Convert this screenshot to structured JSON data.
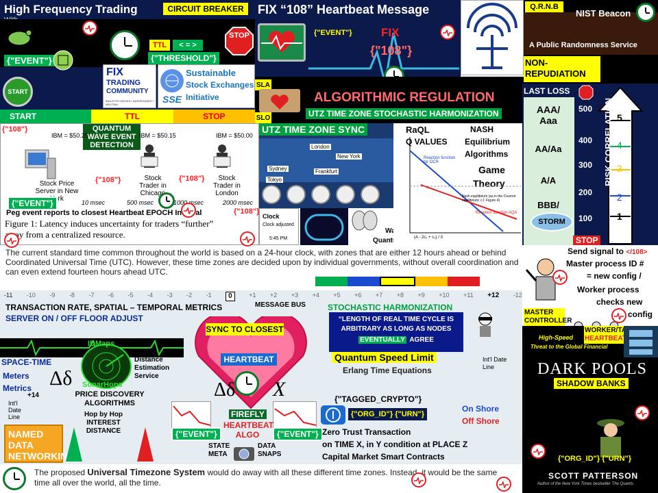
{
  "hft": {
    "title": "High Frequency Trading",
    "subtitle": "With",
    "breaker": "CIRCUIT BREAKER",
    "event": "{\"EVENT\"}",
    "threshold": "{\"THRESHOLD\"}",
    "ttl": "TTL",
    "arrows": "< = >",
    "stop": "STOP",
    "start_btn": "START"
  },
  "fix": {
    "title": "FIX “108” Heartbeat Message",
    "event": "{\"EVENT\"}",
    "fix": "FIX",
    "num": "{\"108\"}",
    "logo_line1": "FIX",
    "logo_line2": "TRADING",
    "logo_line3": "COMMUNITY",
    "logo_tag": "INDUSTRY-DRIVEN • INDEPENDENT • NEUTRAL"
  },
  "sse": {
    "line1": "Sustainable",
    "line2": "Stock Exchanges",
    "line3": "Initiative",
    "abbr": "SSE"
  },
  "nist": {
    "qrnb": "Q.R.N.B",
    "title": "NIST Beacon",
    "subtitle": "A Public Randomness Service",
    "nonrep": "NON-REPUDIATION"
  },
  "reg": {
    "sla": "SLA",
    "slo": "SLO",
    "title": "ALGORITHMIC REGULATION",
    "utz": "UTZ TIME ZONE STOCHASTIC HARMONIZATION"
  },
  "bar": {
    "start": "START",
    "ttl": "TTL",
    "stop": "STOP"
  },
  "latency": {
    "n108": "{\"108\"}",
    "quantum": "QUANTUM WAVE EVENT DETECTION",
    "ibm1": "IBM = $50.25",
    "ibm2": "IBM = $50.15",
    "ibm3": "IBM = $50.00",
    "server": "Stock Price Server in New York",
    "chicago": "Stock Trader in Chicago",
    "london": "Stock Trader in London",
    "t1": "10 msec",
    "t2": "500 msec",
    "t3": "1000 msec",
    "t4": "2000 msec",
    "event": "{\"EVENT\"}",
    "peg": "Peg event reports to closest  Heartbeat EPOCH Interval",
    "fig": "Figure 1: Latency induces uncertainty for traders “further” away from a centralized resource."
  },
  "sync": {
    "title": "UTZ TIME ZONE SYNC",
    "cities": [
      "London",
      "New York",
      "Sydney",
      "Frankfurt",
      "Tokyo"
    ],
    "clock": "Clock",
    "clock_adj": "Clock adjusted",
    "time": "5:45 PM"
  },
  "game": {
    "raql": "RaQL",
    "qvalues": "Q VALUES",
    "nash": "NASH",
    "equi": "Equilibrium",
    "algos": "Algorithms",
    "game": "Game",
    "theory": "Theory",
    "waves": "Waves",
    "quantum": "Quantum",
    "ocr": "Reaction function for OCR",
    "aqa": "Reaction function AQA",
    "nash_eq": "Nash equilibrium (as in the Cournot equilibrium; c.f. Figure 4)",
    "axis": "(A - 2c₁ + c₂) / 3"
  },
  "risk": {
    "last_loss": "LAST LOSS",
    "stop": "STOP",
    "ratings": [
      "AAA/ Aaa",
      "AA/Aa",
      "A/A",
      "BBB/"
    ],
    "scale": [
      "500",
      "400",
      "300",
      "200",
      "100"
    ],
    "levels": [
      "5",
      "4",
      "3",
      "2",
      "1"
    ],
    "label": "RISK CORRELATION",
    "storm": "STORM",
    "stop2": "STOP"
  },
  "utc": {
    "text": "The current standard time common throughout the world is based on a 24-hour clock, with zones that are either 12 hours ahead or behind Coordinated Universal Time (UTC). However, these time zones are decided upon by individual governments, without overall coordination and can even extend fourteen hours ahead UTC.",
    "bold": "Coordinated Universal Time (UTC)",
    "zones": [
      "-11",
      "-10",
      "-9",
      "-8",
      "-7",
      "-6",
      "-5",
      "-4",
      "-3",
      "-2",
      "-1",
      "0",
      "+1",
      "+2",
      "+3",
      "+4",
      "+5",
      "+6",
      "+7",
      "+8",
      "+9",
      "+10",
      "+11",
      "+12",
      "-12"
    ],
    "bus": "MESSAGE  BUS"
  },
  "metrics": {
    "tx": "TRANSACTION RATE, SPATIAL – TEMPORAL METRICS",
    "server_on": "SERVER ON /",
    "off_floor": "OFF FLOOR ADJUST",
    "space": "SPACE-TIME",
    "meters": "Meters",
    "metrics": "Metrics",
    "idmaps": "IDMaps",
    "sonar": "SonarHops",
    "dist": "Distance Estimation Service",
    "plus14": "+14",
    "intl": "Int'l Date Line",
    "price": "PRICE DISCOVERY ALGORITHMS",
    "hop": "Hop by Hop INTEREST DISTANCE",
    "named": "NAMED DATA NETWORKING"
  },
  "heart": {
    "sync": "SYNC TO CLOSEST",
    "hb": "HEARTBEAT",
    "delta": "Δδ",
    "cross": "X",
    "firefly": "FIREFLY",
    "hb_algo": "HEARTBEAT ALGO",
    "state": "STATE META",
    "data": "DATA SNAPS",
    "event1": "{\"EVENT\"}",
    "event2": "{\"EVENT\"}"
  },
  "stoch": {
    "title": "STOCHASTIC HARMONIZATION",
    "quote1": "“LENGTH OF REAL TIME CYCLE IS ARBITRARY  AS LONG AS NODES",
    "quote_hl": "EVENTUALLY",
    "quote2": "AGREE",
    "qsl": "Quantum  Speed Limit",
    "erlang": "Erlang Time Equations",
    "intl": "Int'l Date Line"
  },
  "crypto": {
    "tagged": "{\"TAGGED_CRYPTO\"}",
    "org": "{\"ORG_ID\"}  {\"URN\"}",
    "onshore": "On Shore",
    "offshore": "Off Shore",
    "zero1": "Zero Trust Transaction",
    "zero2": "on TIME X, in Y condition at PLACE Z",
    "zero3": "Capital Market Smart Contracts"
  },
  "master": {
    "send": "Send signal to",
    "tag": "</108>",
    "proc": "Master process ID #",
    "eq": "= new config /",
    "worker": "Worker process",
    "checks": "checks new",
    "config": "config",
    "mc1": "MASTER",
    "mc2": "CONTROLLER",
    "wt": "WORKER/TASK",
    "wh": "HEARTBEATS",
    "thr1": "High-Speed",
    "thr2": "Threat to the Global Financial"
  },
  "dark": {
    "title": "DARK POOLS",
    "sub": "SHADOW BANKS",
    "org": "{\"ORG_ID\"}  {\"URN\"}",
    "author": "SCOTT PATTERSON",
    "byline": "Author of the New York Times bestseller The Quants"
  },
  "footer": {
    "pre": "The proposed ",
    "bold": "Universal Timezone System",
    "post": " would do away with all these different time zones. Instead, it would be the same time all over the world, all the time."
  }
}
